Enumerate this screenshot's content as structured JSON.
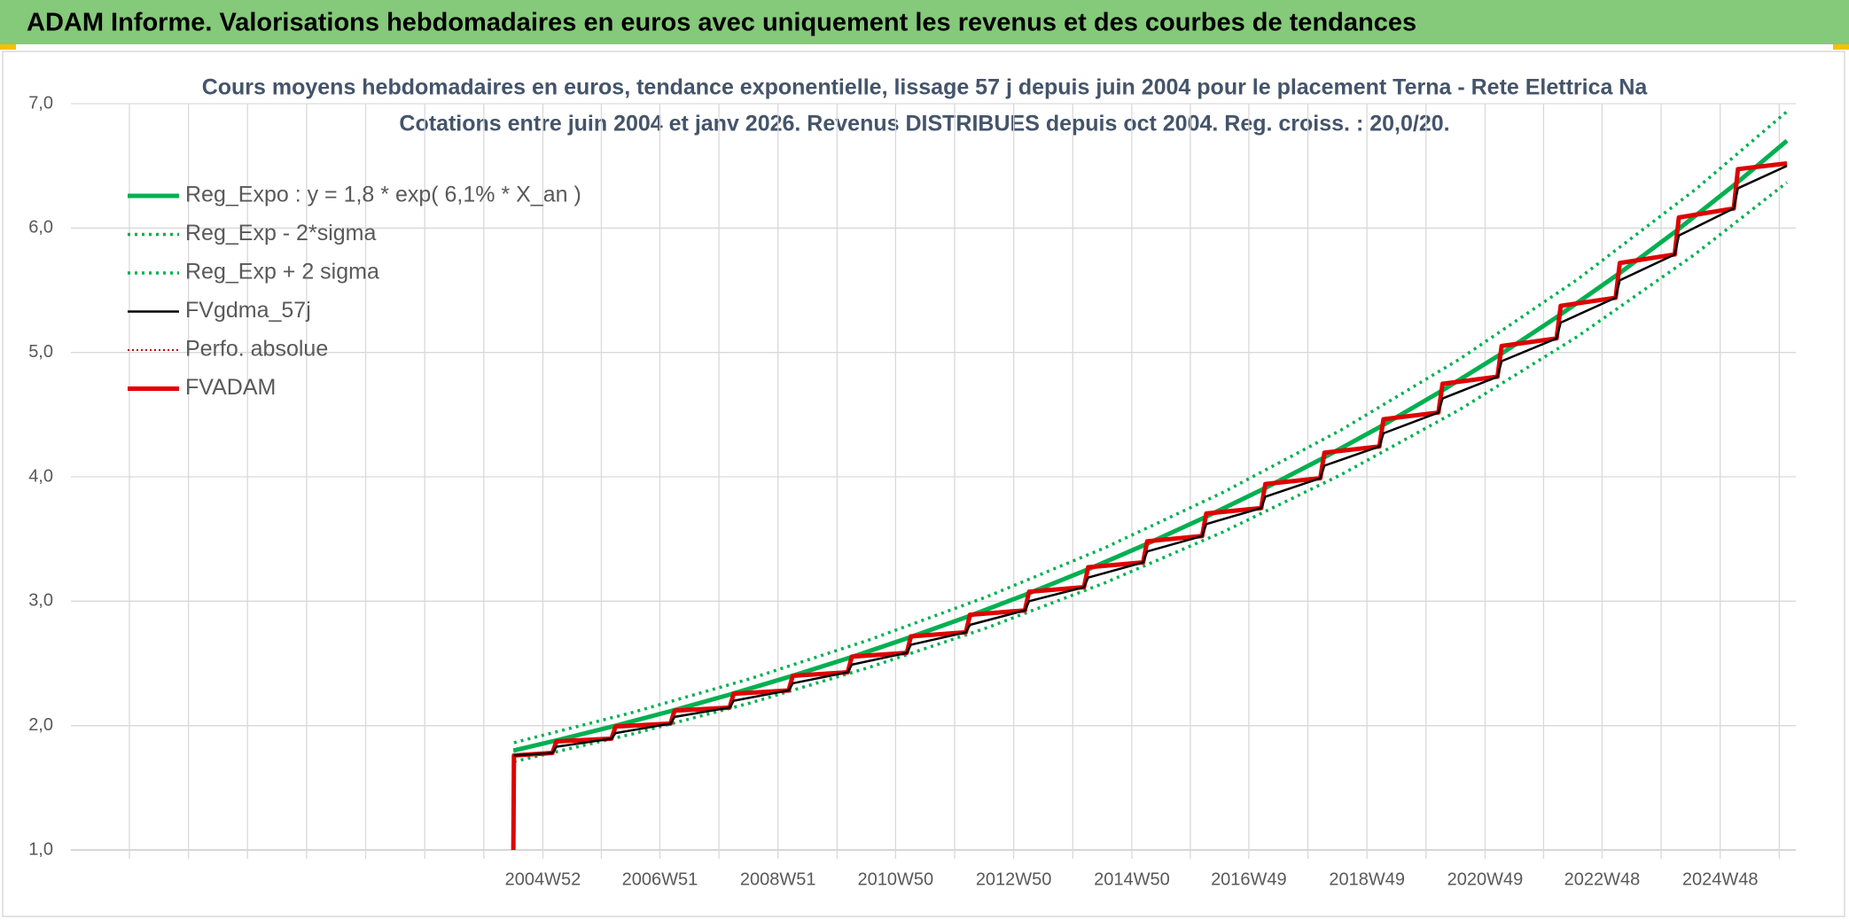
{
  "page_title": "ADAM Informe. Valorisations hebdomadaires en euros avec uniquement les revenus et des courbes de tendances",
  "chart_data": {
    "type": "line",
    "title": "Cours moyens hebdomadaires en euros, tendance exponentielle, lissage 57 j depuis juin 2004 pour le placement Terna - Rete Elettrica Na",
    "subtitle": "Cotations entre juin 2004 et janv 2026. Revenus DISTRIBUES depuis oct 2004. Reg. croiss. : 20,0/20.",
    "xlim": [
      1997,
      2026.2
    ],
    "xticks": [
      {
        "value": 2004.99,
        "label": "2004W52"
      },
      {
        "value": 2006.97,
        "label": "2006W51"
      },
      {
        "value": 2008.97,
        "label": "2008W51"
      },
      {
        "value": 2010.96,
        "label": "2010W50"
      },
      {
        "value": 2012.96,
        "label": "2012W50"
      },
      {
        "value": 2014.96,
        "label": "2014W50"
      },
      {
        "value": 2016.94,
        "label": "2016W49"
      },
      {
        "value": 2018.94,
        "label": "2018W49"
      },
      {
        "value": 2020.94,
        "label": "2020W49"
      },
      {
        "value": 2022.92,
        "label": "2022W48"
      },
      {
        "value": 2024.92,
        "label": "2024W48"
      }
    ],
    "xgrid_minor": [
      1997.99,
      1998.99,
      1999.99,
      2000.99,
      2001.99,
      2002.99,
      2003.99,
      2005.98,
      2007.97,
      2009.97,
      2011.96,
      2013.96,
      2015.95,
      2017.94,
      2019.94,
      2021.93,
      2023.92,
      2025.92
    ],
    "ylim": [
      1,
      7
    ],
    "yticks": [
      {
        "value": 1,
        "label": "1,0"
      },
      {
        "value": 2,
        "label": "2,0"
      },
      {
        "value": 3,
        "label": "3,0"
      },
      {
        "value": 4,
        "label": "4,0"
      },
      {
        "value": 5,
        "label": "5,0"
      },
      {
        "value": 6,
        "label": "6,0"
      },
      {
        "value": 7,
        "label": "7,0"
      }
    ],
    "grid": true,
    "legend": "top-left",
    "x": [
      2004.49,
      2004.5,
      2005.15,
      2005.22,
      2006.15,
      2006.22,
      2007.15,
      2007.22,
      2008.15,
      2008.22,
      2009.15,
      2009.22,
      2010.15,
      2010.22,
      2011.15,
      2011.22,
      2012.15,
      2012.22,
      2013.15,
      2013.22,
      2014.15,
      2014.22,
      2015.15,
      2015.22,
      2016.15,
      2016.22,
      2017.15,
      2017.22,
      2018.15,
      2018.22,
      2019.15,
      2019.22,
      2020.15,
      2020.22,
      2021.15,
      2021.22,
      2022.15,
      2022.22,
      2023.15,
      2023.22,
      2024.15,
      2024.22,
      2025.15,
      2025.22,
      2026.05
    ],
    "series": [
      {
        "name": "Reg_Expo : y = 1,8 * exp( 6,1% *  X_an )",
        "color": "#00b050",
        "style": "thick",
        "values": [
          1.799,
          1.8,
          1.873,
          1.881,
          1.991,
          1.999,
          2.116,
          2.125,
          2.249,
          2.259,
          2.391,
          2.401,
          2.541,
          2.552,
          2.701,
          2.713,
          2.871,
          2.883,
          3.051,
          3.064,
          3.243,
          3.257,
          3.447,
          3.462,
          3.664,
          3.68,
          3.894,
          3.911,
          4.139,
          4.157,
          4.399,
          4.418,
          4.676,
          4.696,
          4.97,
          4.991,
          5.283,
          5.306,
          5.615,
          5.639,
          5.968,
          5.994,
          6.344,
          6.371,
          6.702
        ]
      },
      {
        "name": "Reg_Exp - 2*sigma",
        "color": "#00b050",
        "style": "dotted",
        "x": [
          2004.5,
          2006.5,
          2008.5,
          2010.5,
          2012.5,
          2014.5,
          2016.5,
          2018.5,
          2020.5,
          2022.5,
          2024.5,
          2026.05
        ],
        "values": [
          1.71,
          1.932,
          2.182,
          2.466,
          2.785,
          3.147,
          3.556,
          4.017,
          4.538,
          5.127,
          5.792,
          6.367
        ]
      },
      {
        "name": "Reg_Exp + 2 sigma",
        "color": "#00b050",
        "style": "dotted",
        "x": [
          2004.5,
          2006.5,
          2008.5,
          2010.5,
          2012.5,
          2014.5,
          2016.5,
          2018.5,
          2020.5,
          2022.5,
          2024.5,
          2026.05
        ],
        "values": [
          1.863,
          2.105,
          2.377,
          2.687,
          3.035,
          3.429,
          3.874,
          4.376,
          4.944,
          5.586,
          6.31,
          6.937
        ]
      },
      {
        "name": "FVgdma_57j",
        "color": "#000000",
        "style": "thin",
        "values": [
          null,
          1.76,
          1.78,
          1.83,
          1.895,
          1.94,
          2.016,
          2.07,
          2.145,
          2.2,
          2.283,
          2.34,
          2.429,
          2.49,
          2.585,
          2.65,
          2.75,
          2.81,
          2.926,
          3.0,
          3.113,
          3.19,
          3.312,
          3.4,
          3.524,
          3.62,
          3.749,
          3.84,
          3.989,
          4.09,
          4.244,
          4.35,
          4.517,
          4.63,
          4.805,
          4.93,
          5.113,
          5.24,
          5.44,
          5.58,
          5.788,
          5.94,
          6.158,
          6.32,
          6.5
        ]
      },
      {
        "name": "Perfo. absolue",
        "color": "#c00000",
        "style": "dotted-thin"
      },
      {
        "name": "FVADAM",
        "color": "#e00000",
        "style": "thick",
        "values": [
          1.0,
          1.76,
          1.78,
          1.873,
          1.895,
          1.992,
          2.016,
          2.12,
          2.145,
          2.256,
          2.283,
          2.4,
          2.429,
          2.554,
          2.585,
          2.717,
          2.75,
          2.891,
          2.926,
          3.076,
          3.113,
          3.273,
          3.312,
          3.482,
          3.524,
          3.705,
          3.749,
          3.942,
          3.989,
          4.194,
          4.244,
          4.463,
          4.517,
          4.748,
          4.805,
          5.052,
          5.113,
          5.375,
          5.44,
          5.719,
          5.788,
          6.085,
          6.158,
          6.474,
          6.52
        ]
      }
    ],
    "draw_order": [
      0,
      1,
      2,
      5,
      3
    ]
  }
}
